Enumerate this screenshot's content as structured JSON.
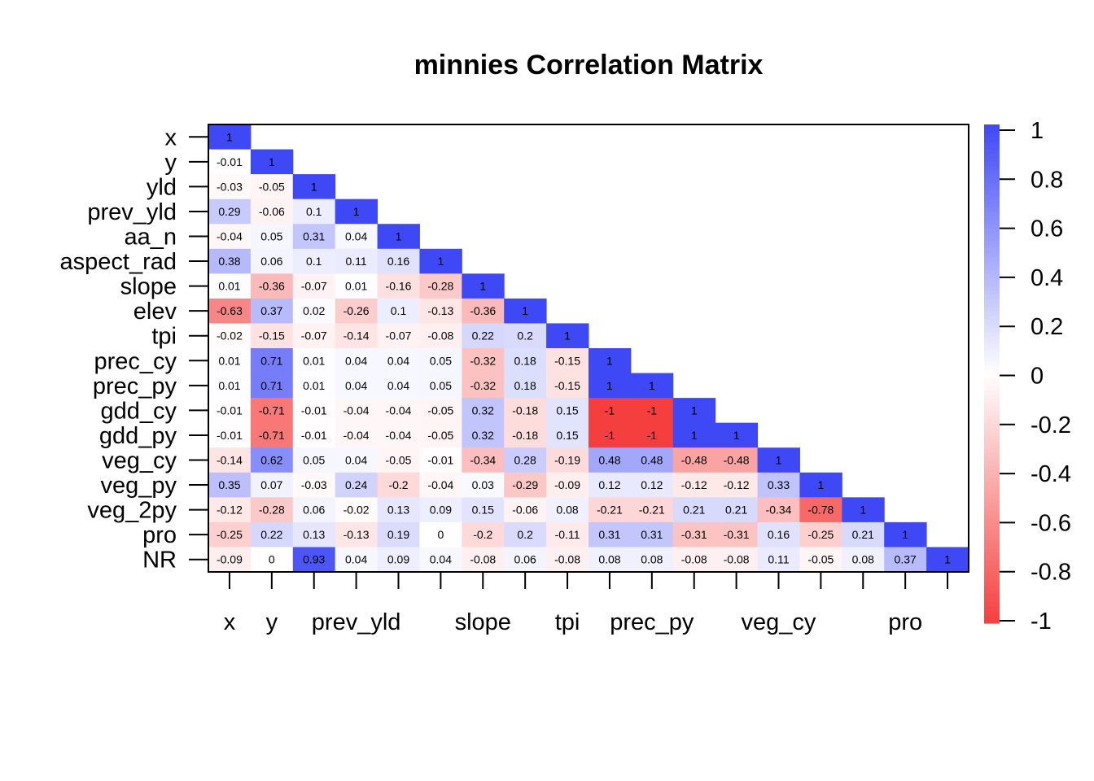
{
  "chart_data": {
    "type": "heatmap",
    "title": "minnies Correlation Matrix",
    "variables": [
      "x",
      "y",
      "yld",
      "prev_yld",
      "aa_n",
      "aspect_rad",
      "slope",
      "elev",
      "tpi",
      "prec_cy",
      "prec_py",
      "gdd_cy",
      "gdd_py",
      "veg_cy",
      "veg_py",
      "veg_2py",
      "pro",
      "NR"
    ],
    "x_tick_labels": [
      "x",
      "y",
      "prev_yld",
      "slope",
      "tpi",
      "prec_py",
      "veg_cy",
      "pro"
    ],
    "x_tick_label_indices": [
      0,
      1,
      3,
      6,
      8,
      10,
      13,
      16
    ],
    "lower_triangle": [
      [
        1
      ],
      [
        -0.01,
        1
      ],
      [
        -0.03,
        -0.05,
        1
      ],
      [
        0.29,
        -0.06,
        0.1,
        1
      ],
      [
        -0.04,
        0.05,
        0.31,
        0.04,
        1
      ],
      [
        0.38,
        0.06,
        0.1,
        0.11,
        0.16,
        1
      ],
      [
        0.01,
        -0.36,
        -0.07,
        0.01,
        -0.16,
        -0.28,
        1
      ],
      [
        -0.63,
        0.37,
        0.02,
        -0.26,
        0.1,
        -0.13,
        -0.36,
        1
      ],
      [
        -0.02,
        -0.15,
        -0.07,
        -0.14,
        -0.07,
        -0.08,
        0.22,
        0.2,
        1
      ],
      [
        0.01,
        0.71,
        0.01,
        0.04,
        0.04,
        0.05,
        -0.32,
        0.18,
        -0.15,
        1
      ],
      [
        0.01,
        0.71,
        0.01,
        0.04,
        0.04,
        0.05,
        -0.32,
        0.18,
        -0.15,
        1,
        1
      ],
      [
        -0.01,
        -0.71,
        -0.01,
        -0.04,
        -0.04,
        -0.05,
        0.32,
        -0.18,
        0.15,
        -1,
        -1,
        1
      ],
      [
        -0.01,
        -0.71,
        -0.01,
        -0.04,
        -0.04,
        -0.05,
        0.32,
        -0.18,
        0.15,
        -1,
        -1,
        1,
        1
      ],
      [
        -0.14,
        0.62,
        0.05,
        0.04,
        -0.05,
        -0.01,
        -0.34,
        0.28,
        -0.19,
        0.48,
        0.48,
        -0.48,
        -0.48,
        1
      ],
      [
        0.35,
        0.07,
        -0.03,
        0.24,
        -0.2,
        -0.04,
        0.03,
        -0.29,
        -0.09,
        0.12,
        0.12,
        -0.12,
        -0.12,
        0.33,
        1
      ],
      [
        -0.12,
        -0.28,
        0.06,
        -0.02,
        0.13,
        0.09,
        0.15,
        -0.06,
        0.08,
        -0.21,
        -0.21,
        0.21,
        0.21,
        -0.34,
        -0.78,
        1
      ],
      [
        -0.25,
        0.22,
        0.13,
        -0.13,
        0.19,
        0,
        -0.2,
        0.2,
        -0.11,
        0.31,
        0.31,
        -0.31,
        -0.31,
        0.16,
        -0.25,
        0.21,
        1
      ],
      [
        -0.09,
        0,
        0.93,
        0.04,
        0.09,
        0.04,
        -0.08,
        0.06,
        -0.08,
        0.08,
        0.08,
        -0.08,
        -0.08,
        0.11,
        -0.05,
        0.08,
        0.37,
        1
      ]
    ],
    "value_range": [
      -1,
      1
    ],
    "legend": {
      "position": "right",
      "ticks": [
        "1",
        "0.8",
        "0.6",
        "0.4",
        "0.2",
        "0",
        "-0.2",
        "-0.4",
        "-0.6",
        "-0.8",
        "-1"
      ],
      "tick_values": [
        1,
        0.8,
        0.6,
        0.4,
        0.2,
        0,
        -0.2,
        -0.4,
        -0.6,
        -0.8,
        -1
      ]
    },
    "colors": {
      "positive": "#3f48f5",
      "neutral": "#ffffff",
      "negative": "#f53f3f"
    }
  }
}
